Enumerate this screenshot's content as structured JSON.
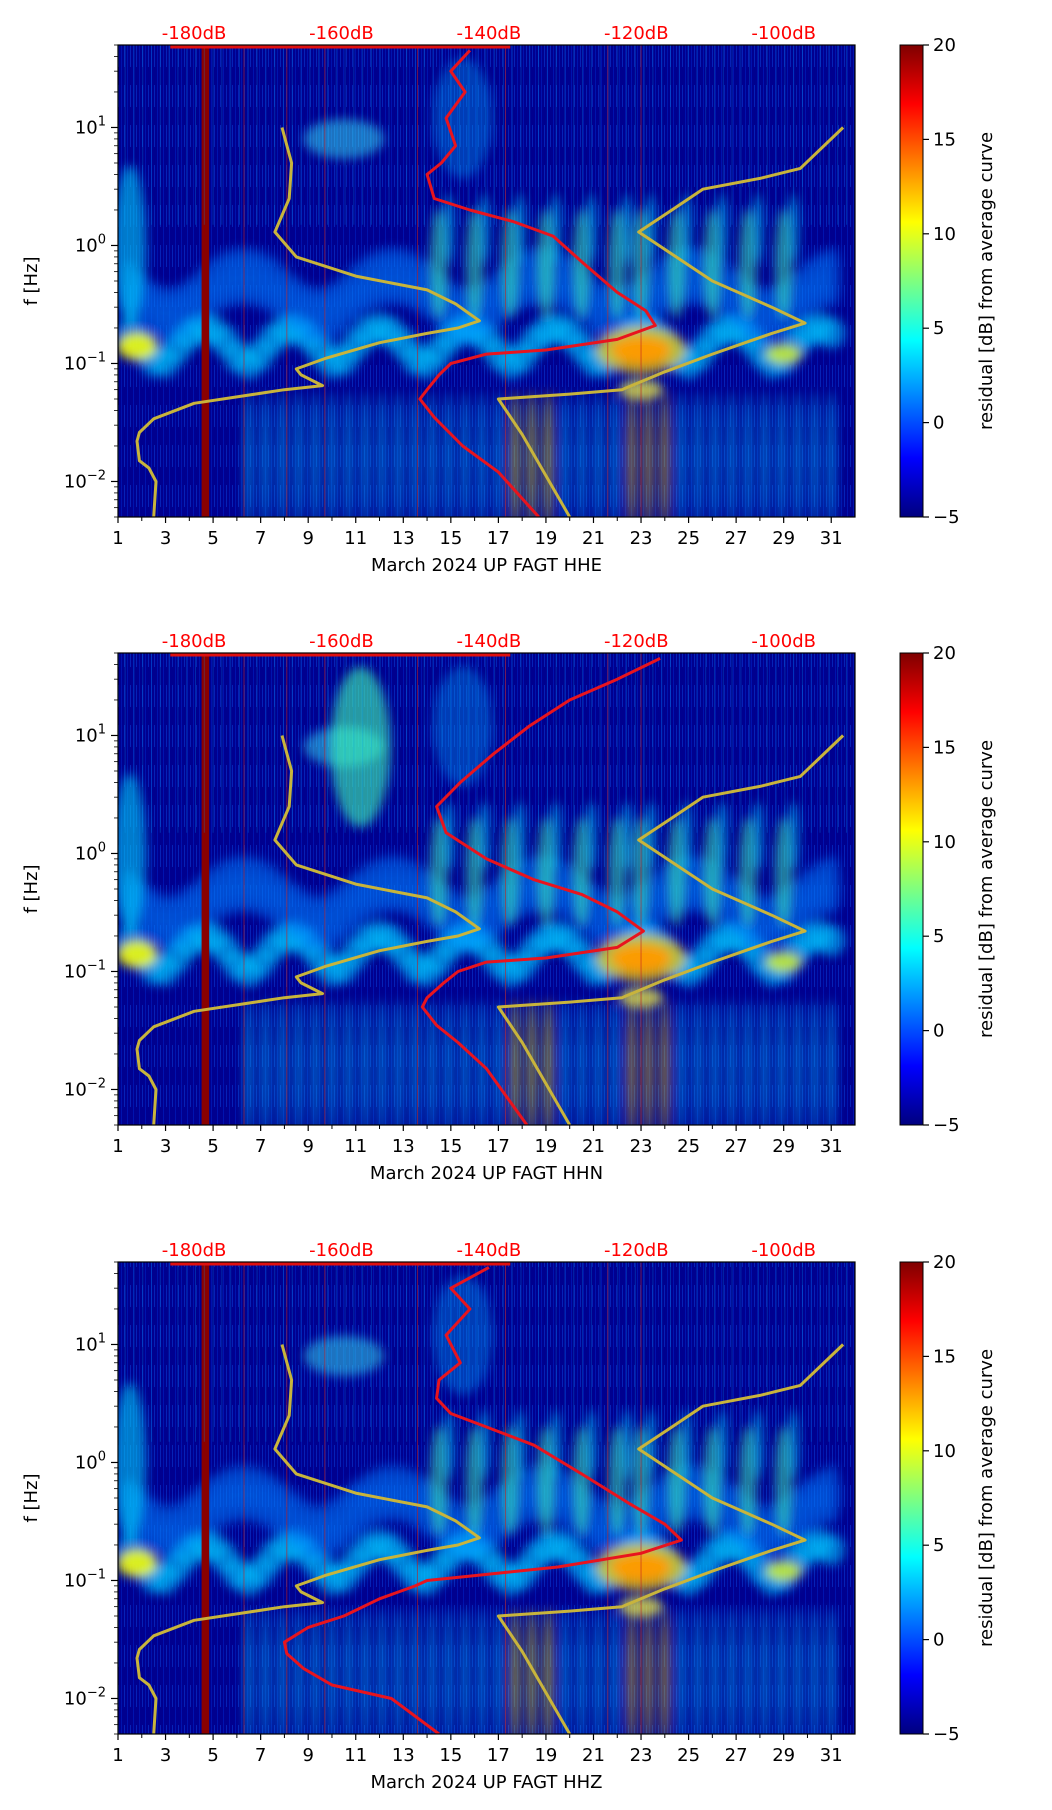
{
  "colors": {
    "spectro_stops": [
      "#00007f",
      "#0000ff",
      "#007fff",
      "#00ffff",
      "#7fff7f",
      "#ffff00",
      "#ff7f00",
      "#ff0000",
      "#7f0000"
    ],
    "background": "#00008f",
    "red_curve": "#e8141e",
    "model_curve": "#c8b43c",
    "top_label": "#ff0000"
  },
  "chart_data": [
    {
      "type": "heatmap",
      "xlabel": "March 2024 UP FAGT  HHE",
      "ylabel": "f [Hz]",
      "x_ticks": [
        "1",
        "3",
        "5",
        "7",
        "9",
        "11",
        "13",
        "15",
        "17",
        "19",
        "21",
        "23",
        "25",
        "27",
        "29",
        "31"
      ],
      "xlim": [
        1,
        32
      ],
      "ylim": [
        0.005,
        50
      ],
      "y_scale": "log",
      "y_ticks": [
        0.01,
        0.1,
        1,
        10
      ],
      "top_labels": [
        "-180dB",
        "-160dB",
        "-140dB",
        "-120dB",
        "-100dB"
      ],
      "top_label_x": [
        4.2,
        10.4,
        16.6,
        22.8,
        29.0
      ],
      "colorbar": {
        "label": "residual [dB] from average curve",
        "ticks": [
          "20",
          "15",
          "10",
          "5",
          "0",
          "−5"
        ],
        "range": [
          -5,
          20
        ]
      },
      "red_curve": [
        [
          15.8,
          45
        ],
        [
          15.0,
          30
        ],
        [
          15.6,
          20
        ],
        [
          14.8,
          12
        ],
        [
          15.2,
          7
        ],
        [
          14.6,
          5
        ],
        [
          14.0,
          4
        ],
        [
          14.3,
          2.5
        ],
        [
          15.8,
          2
        ],
        [
          17.6,
          1.6
        ],
        [
          19.3,
          1.2
        ],
        [
          20.6,
          0.7
        ],
        [
          22.0,
          0.4
        ],
        [
          23.2,
          0.28
        ],
        [
          23.6,
          0.21
        ],
        [
          22.0,
          0.16
        ],
        [
          19.0,
          0.13
        ],
        [
          16.5,
          0.12
        ],
        [
          15.0,
          0.1
        ],
        [
          14.5,
          0.08
        ],
        [
          14.0,
          0.06
        ],
        [
          13.7,
          0.05
        ],
        [
          14.3,
          0.035
        ],
        [
          15.5,
          0.02
        ],
        [
          17.0,
          0.012
        ],
        [
          18.7,
          0.005
        ]
      ],
      "model_curve": [
        [
          7.9,
          10
        ],
        [
          8.3,
          5
        ],
        [
          8.2,
          2.5
        ],
        [
          7.6,
          1.3
        ],
        [
          8.5,
          0.8
        ],
        [
          11.0,
          0.55
        ],
        [
          14.0,
          0.42
        ],
        [
          15.2,
          0.32
        ],
        [
          16.2,
          0.23
        ],
        [
          15.3,
          0.2
        ],
        [
          14.0,
          0.18
        ],
        [
          12.0,
          0.15
        ],
        [
          9.7,
          0.11
        ],
        [
          8.5,
          0.09
        ],
        [
          8.7,
          0.08
        ],
        [
          9.6,
          0.065
        ],
        [
          8.0,
          0.06
        ],
        [
          4.2,
          0.046
        ],
        [
          2.5,
          0.034
        ],
        [
          1.9,
          0.026
        ],
        [
          1.8,
          0.022
        ],
        [
          1.9,
          0.015
        ],
        [
          2.3,
          0.013
        ],
        [
          2.6,
          0.01
        ],
        [
          2.5,
          0.005
        ]
      ],
      "model_curve2": [
        [
          20.0,
          0.005
        ],
        [
          18.0,
          0.025
        ],
        [
          17.0,
          0.05
        ],
        [
          20.0,
          0.055
        ],
        [
          22.2,
          0.06
        ],
        [
          24.0,
          0.085
        ],
        [
          26.0,
          0.12
        ],
        [
          28.5,
          0.18
        ],
        [
          29.9,
          0.22
        ],
        [
          28.5,
          0.3
        ],
        [
          26.0,
          0.5
        ],
        [
          22.9,
          1.3
        ],
        [
          24.3,
          2.0
        ],
        [
          25.6,
          3.0
        ],
        [
          28.0,
          3.7
        ],
        [
          29.7,
          4.5
        ],
        [
          31.5,
          10
        ]
      ]
    },
    {
      "type": "heatmap",
      "xlabel": "March 2024 UP FAGT  HHN",
      "ylabel": "f [Hz]",
      "x_ticks": [
        "1",
        "3",
        "5",
        "7",
        "9",
        "11",
        "13",
        "15",
        "17",
        "19",
        "21",
        "23",
        "25",
        "27",
        "29",
        "31"
      ],
      "xlim": [
        1,
        32
      ],
      "ylim": [
        0.005,
        50
      ],
      "y_scale": "log",
      "y_ticks": [
        0.01,
        0.1,
        1,
        10
      ],
      "top_labels": [
        "-180dB",
        "-160dB",
        "-140dB",
        "-120dB",
        "-100dB"
      ],
      "top_label_x": [
        4.2,
        10.4,
        16.6,
        22.8,
        29.0
      ],
      "colorbar": {
        "label": "residual [dB] from average curve",
        "ticks": [
          "20",
          "15",
          "10",
          "5",
          "0",
          "−5"
        ],
        "range": [
          -5,
          20
        ]
      },
      "red_curve": [
        [
          23.8,
          45
        ],
        [
          22.0,
          30
        ],
        [
          20.0,
          20
        ],
        [
          18.3,
          12
        ],
        [
          16.8,
          7
        ],
        [
          15.4,
          4
        ],
        [
          14.4,
          2.5
        ],
        [
          14.8,
          1.5
        ],
        [
          16.5,
          0.9
        ],
        [
          18.5,
          0.6
        ],
        [
          20.5,
          0.45
        ],
        [
          22.0,
          0.32
        ],
        [
          23.1,
          0.22
        ],
        [
          22.0,
          0.16
        ],
        [
          19.0,
          0.13
        ],
        [
          16.5,
          0.12
        ],
        [
          15.3,
          0.1
        ],
        [
          14.7,
          0.08
        ],
        [
          14.0,
          0.06
        ],
        [
          13.8,
          0.05
        ],
        [
          14.4,
          0.035
        ],
        [
          15.3,
          0.025
        ],
        [
          16.5,
          0.015
        ],
        [
          18.2,
          0.005
        ]
      ],
      "model_curve": [
        [
          7.9,
          10
        ],
        [
          8.3,
          5
        ],
        [
          8.2,
          2.5
        ],
        [
          7.6,
          1.3
        ],
        [
          8.5,
          0.8
        ],
        [
          11.0,
          0.55
        ],
        [
          14.0,
          0.42
        ],
        [
          15.2,
          0.32
        ],
        [
          16.2,
          0.23
        ],
        [
          15.3,
          0.2
        ],
        [
          14.0,
          0.18
        ],
        [
          12.0,
          0.15
        ],
        [
          9.7,
          0.11
        ],
        [
          8.5,
          0.09
        ],
        [
          8.7,
          0.08
        ],
        [
          9.6,
          0.065
        ],
        [
          8.0,
          0.06
        ],
        [
          4.2,
          0.046
        ],
        [
          2.5,
          0.034
        ],
        [
          1.9,
          0.026
        ],
        [
          1.8,
          0.022
        ],
        [
          1.9,
          0.015
        ],
        [
          2.3,
          0.013
        ],
        [
          2.6,
          0.01
        ],
        [
          2.5,
          0.005
        ]
      ],
      "model_curve2": [
        [
          20.0,
          0.005
        ],
        [
          18.0,
          0.025
        ],
        [
          17.0,
          0.05
        ],
        [
          20.0,
          0.055
        ],
        [
          22.2,
          0.06
        ],
        [
          24.0,
          0.085
        ],
        [
          26.0,
          0.12
        ],
        [
          28.5,
          0.18
        ],
        [
          29.9,
          0.22
        ],
        [
          28.5,
          0.3
        ],
        [
          26.0,
          0.5
        ],
        [
          22.9,
          1.3
        ],
        [
          24.3,
          2.0
        ],
        [
          25.6,
          3.0
        ],
        [
          28.0,
          3.7
        ],
        [
          29.7,
          4.5
        ],
        [
          31.5,
          10
        ]
      ]
    },
    {
      "type": "heatmap",
      "xlabel": "March 2024 UP FAGT  HHZ",
      "ylabel": "f [Hz]",
      "x_ticks": [
        "1",
        "3",
        "5",
        "7",
        "9",
        "11",
        "13",
        "15",
        "17",
        "19",
        "21",
        "23",
        "25",
        "27",
        "29",
        "31"
      ],
      "xlim": [
        1,
        32
      ],
      "ylim": [
        0.005,
        50
      ],
      "y_scale": "log",
      "y_ticks": [
        0.01,
        0.1,
        1,
        10
      ],
      "top_labels": [
        "-180dB",
        "-160dB",
        "-140dB",
        "-120dB",
        "-100dB"
      ],
      "top_label_x": [
        4.2,
        10.4,
        16.6,
        22.8,
        29.0
      ],
      "colorbar": {
        "label": "residual [dB] from average curve",
        "ticks": [
          "20",
          "15",
          "10",
          "5",
          "0",
          "−5"
        ],
        "range": [
          -5,
          20
        ]
      },
      "red_curve": [
        [
          16.6,
          45
        ],
        [
          15.0,
          30
        ],
        [
          15.8,
          20
        ],
        [
          14.8,
          12
        ],
        [
          15.4,
          7
        ],
        [
          14.5,
          5
        ],
        [
          14.4,
          3.5
        ],
        [
          15.0,
          2.6
        ],
        [
          16.5,
          2
        ],
        [
          18.5,
          1.4
        ],
        [
          20.5,
          0.8
        ],
        [
          22.5,
          0.45
        ],
        [
          24.0,
          0.3
        ],
        [
          24.7,
          0.22
        ],
        [
          23.0,
          0.17
        ],
        [
          19.5,
          0.13
        ],
        [
          16.0,
          0.11
        ],
        [
          14.0,
          0.1
        ],
        [
          13.5,
          0.09
        ],
        [
          12.0,
          0.07
        ],
        [
          10.5,
          0.05
        ],
        [
          9.0,
          0.04
        ],
        [
          8.0,
          0.03
        ],
        [
          8.1,
          0.024
        ],
        [
          8.8,
          0.018
        ],
        [
          10.0,
          0.013
        ],
        [
          12.5,
          0.01
        ],
        [
          14.5,
          0.005
        ]
      ],
      "model_curve": [
        [
          7.9,
          10
        ],
        [
          8.3,
          5
        ],
        [
          8.2,
          2.5
        ],
        [
          7.6,
          1.3
        ],
        [
          8.5,
          0.8
        ],
        [
          11.0,
          0.55
        ],
        [
          14.0,
          0.42
        ],
        [
          15.2,
          0.32
        ],
        [
          16.2,
          0.23
        ],
        [
          15.3,
          0.2
        ],
        [
          14.0,
          0.18
        ],
        [
          12.0,
          0.15
        ],
        [
          9.7,
          0.11
        ],
        [
          8.5,
          0.09
        ],
        [
          8.7,
          0.08
        ],
        [
          9.6,
          0.065
        ],
        [
          8.0,
          0.06
        ],
        [
          4.2,
          0.046
        ],
        [
          2.5,
          0.034
        ],
        [
          1.9,
          0.026
        ],
        [
          1.8,
          0.022
        ],
        [
          1.9,
          0.015
        ],
        [
          2.3,
          0.013
        ],
        [
          2.6,
          0.01
        ],
        [
          2.5,
          0.005
        ]
      ],
      "model_curve2": [
        [
          20.0,
          0.005
        ],
        [
          18.0,
          0.025
        ],
        [
          17.0,
          0.05
        ],
        [
          20.0,
          0.055
        ],
        [
          22.2,
          0.06
        ],
        [
          24.0,
          0.085
        ],
        [
          26.0,
          0.12
        ],
        [
          28.5,
          0.18
        ],
        [
          29.9,
          0.22
        ],
        [
          28.5,
          0.3
        ],
        [
          26.0,
          0.5
        ],
        [
          22.9,
          1.3
        ],
        [
          24.3,
          2.0
        ],
        [
          25.6,
          3.0
        ],
        [
          28.0,
          3.7
        ],
        [
          29.7,
          4.5
        ],
        [
          31.5,
          10
        ]
      ]
    }
  ]
}
